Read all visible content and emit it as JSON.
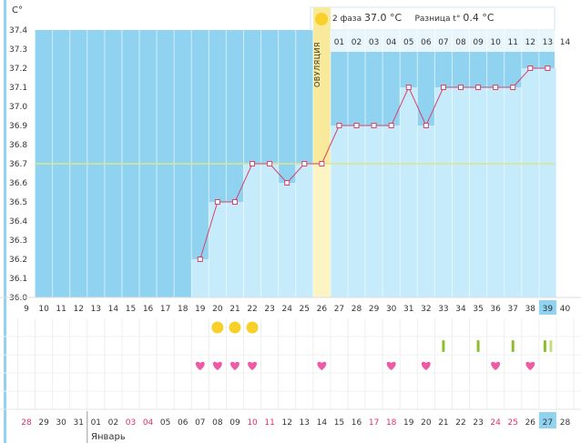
{
  "chart_data": {
    "type": "line",
    "y_unit": "C°",
    "ylim": [
      36.0,
      37.4
    ],
    "y_ticks": [
      "36.0",
      "36.1",
      "36.2",
      "36.3",
      "36.4",
      "36.5",
      "36.6",
      "36.7",
      "36.8",
      "36.9",
      "37.0",
      "37.1",
      "37.2",
      "37.3",
      "37.4"
    ],
    "cycle_days": [
      "9",
      "10",
      "11",
      "12",
      "13",
      "14",
      "15",
      "16",
      "17",
      "18",
      "19",
      "20",
      "21",
      "22",
      "23",
      "24",
      "25",
      "26",
      "27",
      "28",
      "29",
      "30",
      "31",
      "32",
      "33",
      "34",
      "35",
      "36",
      "37",
      "38",
      "39",
      "40"
    ],
    "current_cycle_day": "39",
    "phase2_days": [
      "01",
      "02",
      "03",
      "04",
      "05",
      "06",
      "07",
      "08",
      "09",
      "10",
      "11",
      "12",
      "13",
      "14"
    ],
    "dates": [
      "28",
      "29",
      "30",
      "31",
      "01",
      "02",
      "03",
      "04",
      "05",
      "06",
      "07",
      "08",
      "09",
      "10",
      "11",
      "12",
      "13",
      "14",
      "15",
      "16",
      "17",
      "18",
      "19",
      "20",
      "21",
      "22",
      "23",
      "24",
      "25",
      "26",
      "27",
      "28"
    ],
    "date_colors": [
      "#e0305f",
      "#333",
      "#333",
      "#333",
      "#333",
      "#333",
      "#e0305f",
      "#e0305f",
      "#333",
      "#333",
      "#333",
      "#333",
      "#333",
      "#e0305f",
      "#e0305f",
      "#333",
      "#333",
      "#333",
      "#333",
      "#333",
      "#e0305f",
      "#e0305f",
      "#333",
      "#333",
      "#333",
      "#333",
      "#333",
      "#e0305f",
      "#e0305f",
      "#333",
      "#333",
      "#333"
    ],
    "today_date": "27",
    "month_label": "Январь",
    "ovulation_label": "ОВУЛЯЦИЯ",
    "ovulation_day": "26",
    "coverline": 36.7,
    "series": [
      {
        "x": [
          "19",
          "20",
          "21",
          "22",
          "23",
          "24",
          "25",
          "26",
          "27",
          "28",
          "29",
          "30",
          "31",
          "32",
          "33",
          "34",
          "35",
          "36",
          "37",
          "38",
          "39"
        ],
        "values": [
          36.2,
          36.5,
          36.5,
          36.7,
          36.7,
          36.6,
          36.7,
          36.7,
          36.9,
          36.9,
          36.9,
          36.9,
          37.1,
          36.9,
          37.1,
          37.1,
          37.1,
          37.1,
          37.1,
          37.2,
          37.2
        ]
      }
    ],
    "symptoms": {
      "yellow_dots": [
        "20",
        "21",
        "22"
      ],
      "green_bars": [
        "33",
        "35",
        "37",
        "39"
      ],
      "light_green_bars": [
        "39b"
      ],
      "hearts": [
        "19",
        "20",
        "21",
        "22",
        "26",
        "30",
        "32",
        "36",
        "38"
      ]
    },
    "phase_info": {
      "phase_label": "2 фаза",
      "phase_temp": "37.0 °C",
      "diff_label": "Разница t°",
      "diff_value": "0.4 °C"
    }
  },
  "colors": {
    "sky": "#8fd3f1",
    "bar_fill": "#c6ebfb",
    "ovulation_band": "#f8ea9a",
    "line": "#d8436b",
    "coverline": "#d9e88a",
    "today_bg": "#8fd3f1",
    "heart": "#ef5aa5",
    "yellow_dot": "#f7d02a",
    "green_bar": "#8dbe2f",
    "light_green_bar": "#c5e07b"
  }
}
